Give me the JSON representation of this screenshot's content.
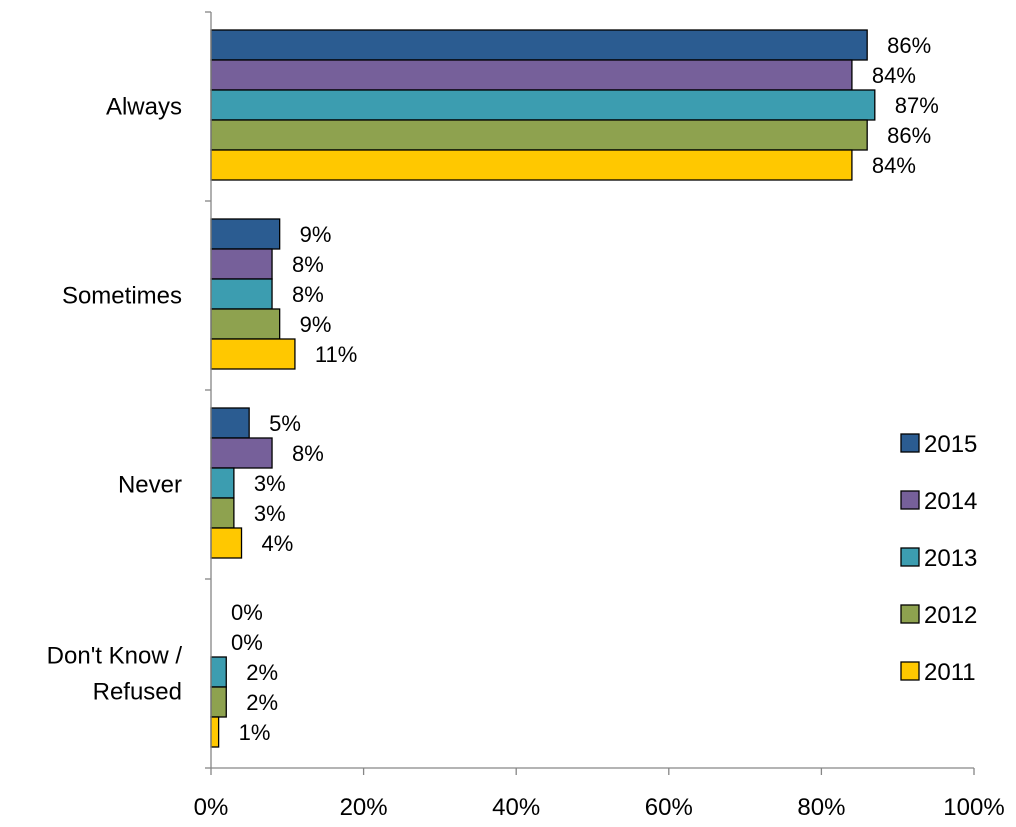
{
  "chart_data": {
    "type": "bar",
    "orientation": "horizontal",
    "categories": [
      "Always",
      "Sometimes",
      "Never",
      "Don't Know / Refused"
    ],
    "category_lines": [
      [
        "Always"
      ],
      [
        "Sometimes"
      ],
      [
        "Never"
      ],
      [
        "Don't Know /",
        "Refused"
      ]
    ],
    "series": [
      {
        "name": "2015",
        "color": "#2B5C91",
        "values": [
          86,
          9,
          5,
          0
        ]
      },
      {
        "name": "2014",
        "color": "#76609A",
        "values": [
          84,
          8,
          8,
          0
        ]
      },
      {
        "name": "2013",
        "color": "#3C9DB0",
        "values": [
          87,
          8,
          3,
          2
        ]
      },
      {
        "name": "2012",
        "color": "#8EA24F",
        "values": [
          86,
          9,
          3,
          2
        ]
      },
      {
        "name": "2011",
        "color": "#FFC800",
        "values": [
          84,
          11,
          4,
          1
        ]
      }
    ],
    "value_suffix": "%",
    "xlim": [
      0,
      100
    ],
    "xticks": [
      0,
      20,
      40,
      60,
      80,
      100
    ],
    "xtick_labels": [
      "0%",
      "20%",
      "40%",
      "60%",
      "80%",
      "100%"
    ],
    "legend": {
      "position": "right",
      "entries": [
        "2015",
        "2014",
        "2013",
        "2012",
        "2011"
      ]
    },
    "grid": false,
    "title": "",
    "xlabel": "",
    "ylabel": ""
  }
}
